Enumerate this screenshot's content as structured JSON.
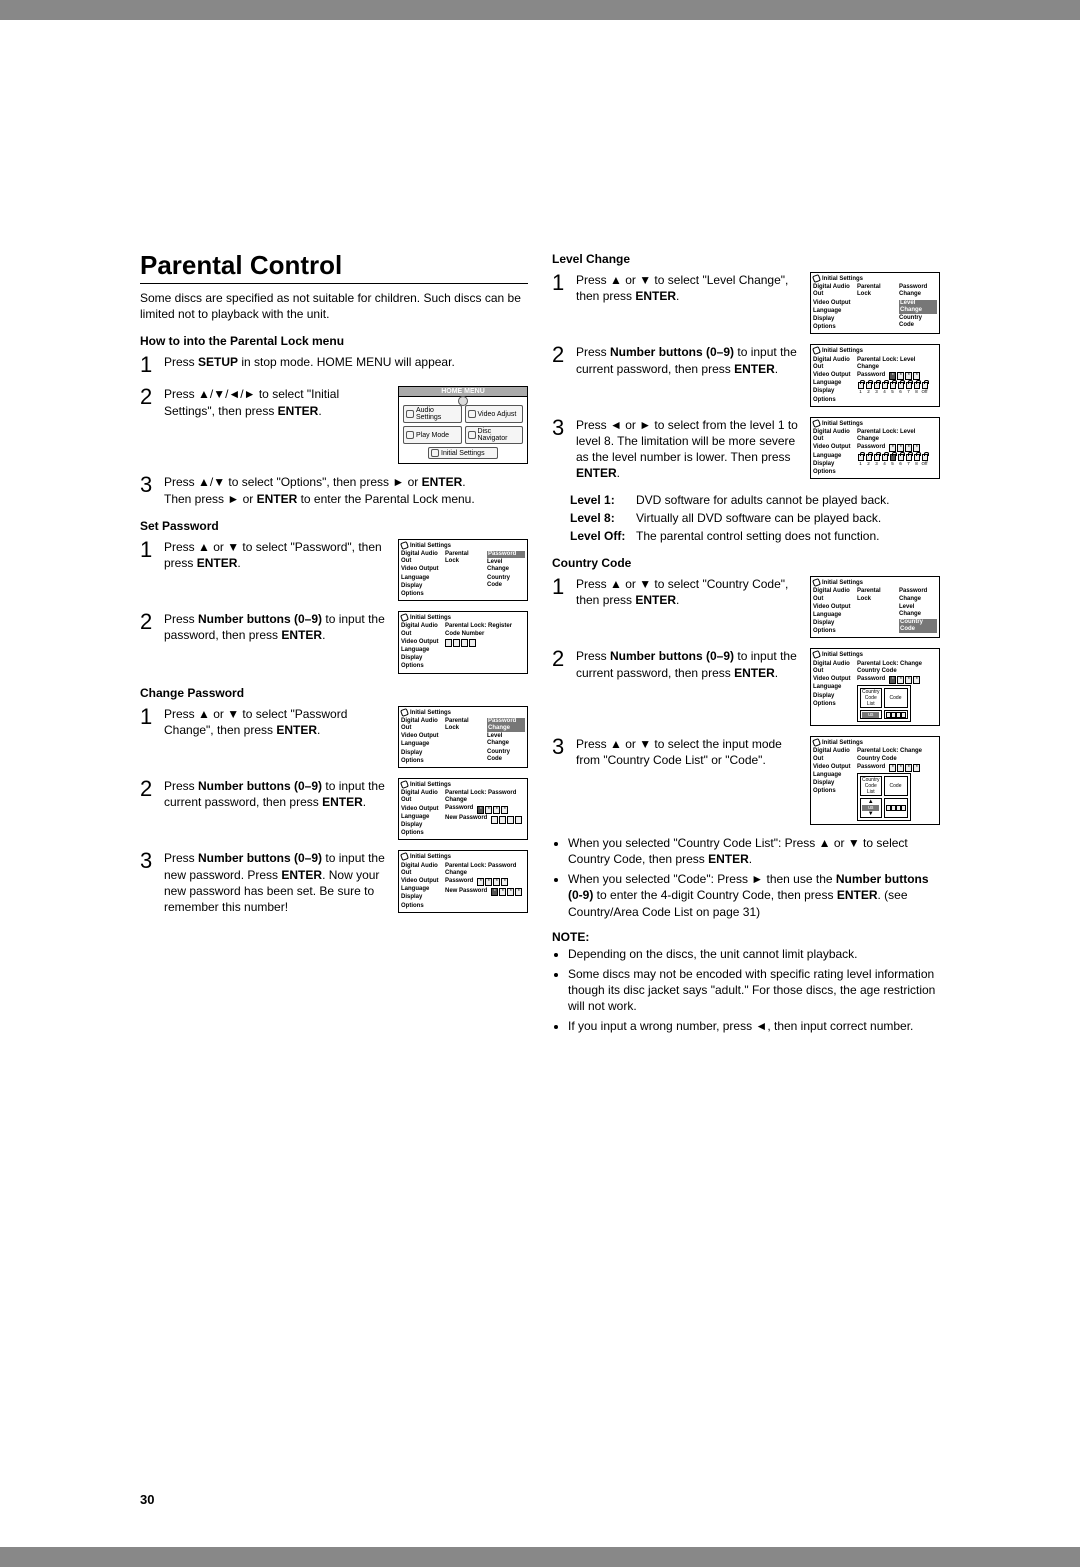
{
  "page_number": "30",
  "title": "Parental Control",
  "intro": "Some discs are specified as not suitable for children. Such discs can be limited not to playback with the unit.",
  "howto_head": "How to into the Parental Lock menu",
  "left": {
    "s1": "Press <b>SETUP</b> in stop mode. HOME MENU will appear.",
    "s2": "Press ▲/▼/◄/► to select \"Initial Settings\", then press <b>ENTER</b>.",
    "s3a": "Press ▲/▼ to select \"Options\", then press ► or <b>ENTER</b>.",
    "s3b": "Then press ► or <b>ENTER</b> to enter the Parental Lock menu.",
    "set_pw_head": "Set Password",
    "sp1": "Press ▲ or ▼ to select \"Password\", then press <b>ENTER</b>.",
    "sp2": "Press <b>Number buttons (0–9)</b> to input the password, then press <b>ENTER</b>.",
    "cp_head": "Change Password",
    "cp1": "Press ▲ or ▼ to select \"Password Change\", then press <b>ENTER</b>.",
    "cp2": "Press <b>Number buttons (0–9)</b> to input the current password, then press <b>ENTER</b>.",
    "cp3": "Press <b>Number buttons (0–9)</b> to input the new password. Press <b>ENTER</b>. Now your new password has been set. Be sure to remember this number!"
  },
  "right": {
    "lc_head": "Level Change",
    "lc1": "Press ▲ or ▼ to select \"Level Change\", then press <b>ENTER</b>.",
    "lc2": "Press <b>Number buttons (0–9)</b> to input the current password, then press <b>ENTER</b>.",
    "lc3": "Press ◄ or ► to select from the level 1 to level 8. The limitation will be more severe as the level number is lower. Then press <b>ENTER</b>.",
    "l1": "DVD software for adults cannot be played back.",
    "l8": "Virtually all DVD software can be played back.",
    "loff": "The parental control setting does not function.",
    "cc_head": "Country Code",
    "cc1": "Press ▲ or ▼ to select \"Country Code\", then press <b>ENTER</b>.",
    "cc2": "Press <b>Number buttons (0–9)</b> to input the current password, then press <b>ENTER</b>.",
    "cc3": "Press ▲ or ▼ to select the input mode from \"Country Code List\" or \"Code\".",
    "b1": "When you selected \"Country Code List\": Press ▲ or ▼ to select Country Code, then press <b>ENTER</b>.",
    "b2": "When you selected \"Code\": Press ► then use the <b>Number buttons (0-9)</b> to enter the 4-digit Country Code, then press <b>ENTER</b>. (see Country/Area Code List on page 31)",
    "note_head": "NOTE:",
    "n1": "Depending on the discs, the unit cannot limit playback.",
    "n2": "Some discs may not be encoded with specific rating level information though its disc jacket says \"adult.\" For those discs, the age restriction will not work.",
    "n3": "If you input a wrong number, press ◄, then input correct number."
  },
  "osd": {
    "title": "Initial Settings",
    "left_items": [
      "Digital Audio Out",
      "Video Output",
      "Language",
      "Display",
      "Options"
    ],
    "parental_lock": "Parental Lock",
    "password": "Password",
    "level_change": "Level Change",
    "country_code": "Country Code",
    "pw_change": "Password Change",
    "register_code": "Parental Lock: Register Code Number",
    "new_pw": "New Password",
    "level_change_path": "Parental Lock: Level Change",
    "change_cc_path": "Parental Lock: Change Country Code",
    "pw_change_path": "Parental Lock: Password Change",
    "cc_list": "Country Code List",
    "code": "Code",
    "us": "us"
  },
  "home_menu": {
    "title": "HOME MENU",
    "audio": "Audio Settings",
    "video": "Video Adjust",
    "play": "Play Mode",
    "disc": "Disc Navigator",
    "initial": "Initial Settings"
  },
  "labels": {
    "level1": "Level 1",
    "level8": "Level 8",
    "leveloff": "Level Off"
  }
}
